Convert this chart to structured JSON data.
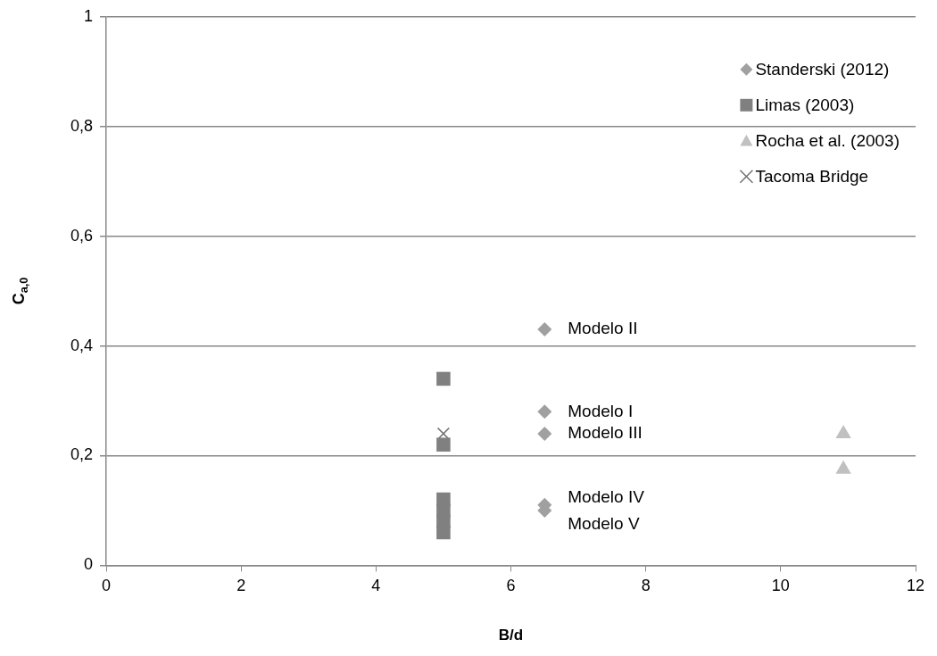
{
  "chart_data": {
    "type": "scatter",
    "xlabel": "B/d",
    "ylabel": "C$_{a,0}$",
    "xlim": [
      0,
      12
    ],
    "xticks": [
      0,
      2,
      4,
      6,
      8,
      10,
      12
    ],
    "ylim": [
      0,
      1
    ],
    "yticks": [
      0,
      {
        "value": 0.2,
        "label": "0,2"
      },
      {
        "value": 0.4,
        "label": "0,4"
      },
      {
        "value": 0.6,
        "label": "0,6"
      },
      {
        "value": 0.8,
        "label": "0,8"
      },
      1
    ],
    "grid": "y",
    "legend": "top right",
    "series": [
      {
        "name": "Standerski (2012)",
        "color": "#a0a0a0",
        "marker": "diamond",
        "x": [
          6.5,
          6.5,
          6.5,
          6.5,
          6.5
        ],
        "values": [
          0.28,
          0.43,
          0.24,
          0.11,
          0.1
        ]
      },
      {
        "name": "Limas (2003)",
        "color": "#808080",
        "marker": "square",
        "x": [
          5,
          5,
          5,
          5,
          5,
          5
        ],
        "values": [
          0.34,
          0.22,
          0.12,
          0.1,
          0.08,
          0.06
        ]
      },
      {
        "name": "Rocha et al. (2003)",
        "color": "#c0c0c0",
        "marker": "triangle",
        "x": [
          10.93,
          10.93
        ],
        "values": [
          0.24,
          0.175
        ]
      },
      {
        "name": "Tacoma Bridge",
        "color": "#707070",
        "marker": "cross",
        "x": [
          5
        ],
        "values": [
          0.24
        ]
      }
    ],
    "annotations": [
      "Modelo I",
      "Modelo II",
      "Modelo III",
      "Modelo IV",
      "Modelo V"
    ]
  }
}
